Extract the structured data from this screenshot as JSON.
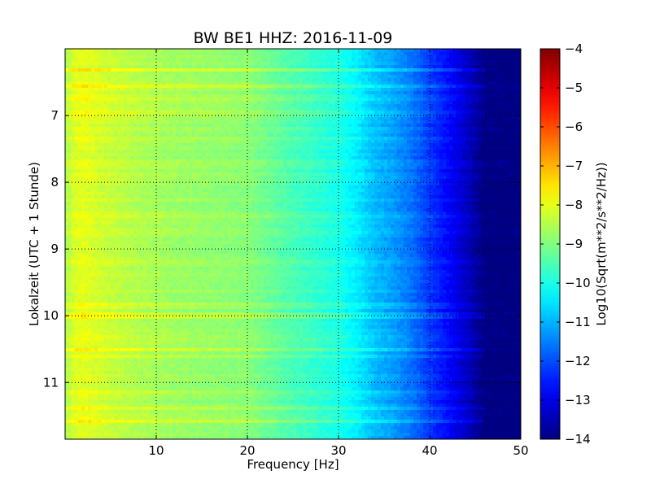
{
  "chart_data": {
    "type": "heatmap",
    "title": "BW BE1 HHZ: 2016-11-09",
    "xlabel": "Frequency [Hz]",
    "ylabel": "Lokalzeit (UTC + 1 Stunde)",
    "xlim": [
      0,
      50
    ],
    "ylim": [
      11.85,
      6.0
    ],
    "x_ticks": [
      10,
      20,
      30,
      40,
      50
    ],
    "y_ticks": [
      7,
      8,
      9,
      10,
      11
    ],
    "grid": true,
    "colormap": "jet",
    "colorbar": {
      "label": "Log10(Sqrt(m**2/s**2/Hz))",
      "range": [
        -14,
        -4
      ],
      "ticks": [
        -4,
        -5,
        -6,
        -7,
        -8,
        -9,
        -10,
        -11,
        -12,
        -13,
        -14
      ]
    },
    "spectrum_profile": {
      "frequencies": [
        0,
        1,
        2,
        3,
        5,
        8,
        12,
        16,
        20,
        24,
        28,
        30,
        32,
        34,
        36,
        38,
        40,
        42,
        44,
        46,
        50
      ],
      "values": [
        -8.6,
        -8.1,
        -8.0,
        -8.1,
        -8.3,
        -8.5,
        -8.7,
        -8.8,
        -8.9,
        -9.4,
        -9.8,
        -10.0,
        -10.4,
        -10.9,
        -11.2,
        -11.6,
        -12.2,
        -12.7,
        -13.3,
        -14.0,
        -14.0
      ]
    },
    "energy_bands": [
      {
        "time": 6.32,
        "offset": 0.6
      },
      {
        "time": 6.57,
        "offset": 0.6
      },
      {
        "time": 6.74,
        "offset": 0.6
      },
      {
        "time": 6.97,
        "offset": 0.5
      },
      {
        "time": 7.35,
        "offset": 0.3
      },
      {
        "time": 8.52,
        "offset": 0.3
      },
      {
        "time": 9.21,
        "offset": 0.4
      },
      {
        "time": 9.85,
        "offset": 0.4
      },
      {
        "time": 10.0,
        "offset": 0.7
      },
      {
        "time": 10.35,
        "offset": 0.3
      },
      {
        "time": 10.5,
        "offset": 0.5
      },
      {
        "time": 10.6,
        "offset": 0.4
      },
      {
        "time": 11.13,
        "offset": 0.3
      },
      {
        "time": 11.38,
        "offset": 0.4
      },
      {
        "time": 11.57,
        "offset": 0.7
      }
    ]
  }
}
